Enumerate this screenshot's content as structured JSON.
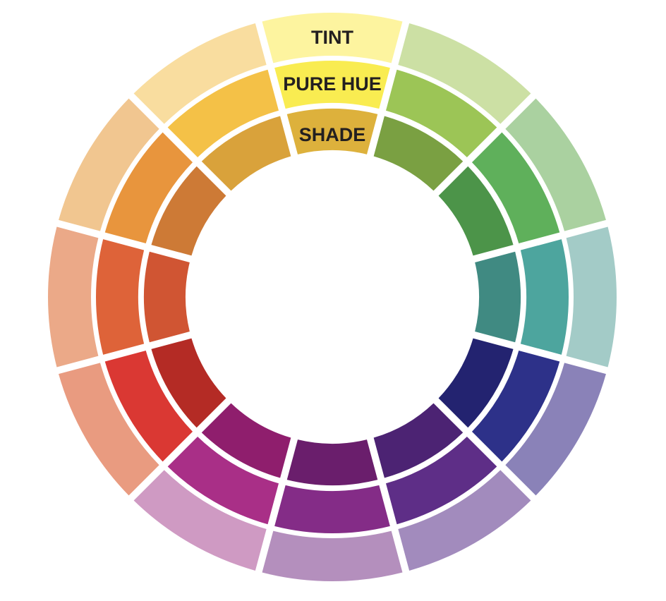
{
  "diagram": {
    "type": "color-wheel",
    "labels": {
      "tint": "TINT",
      "pure_hue": "PURE HUE",
      "shade": "SHADE"
    },
    "rings": {
      "tint": [
        "#fdf49f",
        "#cce0a4",
        "#aad1a0",
        "#a3cbc7",
        "#8a82b8",
        "#a28bbd",
        "#b48fbd",
        "#cf9ac3",
        "#e99b80",
        "#eba988",
        "#f1c690",
        "#f9dd9f"
      ],
      "pure_hue": [
        "#f9ec51",
        "#9cc556",
        "#5fb05b",
        "#4da59e",
        "#2d3189",
        "#5e2e87",
        "#842c87",
        "#a92f87",
        "#da3833",
        "#de6339",
        "#e8953d",
        "#f4c147"
      ],
      "shade": [
        "#ddb13c",
        "#7aa042",
        "#4c9449",
        "#408a82",
        "#232370",
        "#4c2373",
        "#6a1e6c",
        "#8f1e6d",
        "#b42b25",
        "#d05533",
        "#cd7a36",
        "#d9a23b"
      ]
    }
  }
}
